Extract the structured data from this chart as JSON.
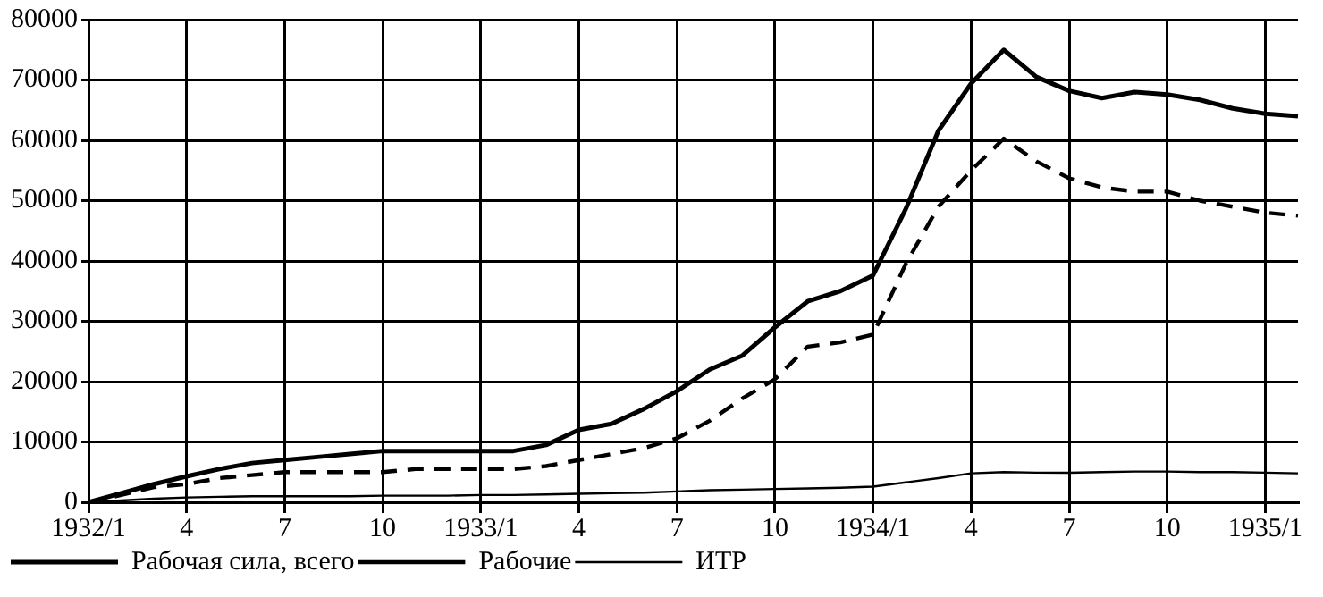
{
  "chart_data": {
    "type": "line",
    "categories": [
      "1932/1",
      null,
      null,
      "4",
      null,
      null,
      "7",
      null,
      null,
      "10",
      null,
      null,
      "1933/1",
      null,
      null,
      "4",
      null,
      null,
      "7",
      null,
      null,
      "10",
      null,
      null,
      "1934/1",
      null,
      null,
      "4",
      null,
      null,
      "7",
      null,
      null,
      "10",
      null,
      null,
      "1935/1",
      null
    ],
    "series": [
      {
        "name": "Рабочая сила, всего",
        "color": "#000000",
        "line_style": "solid",
        "values": [
          0,
          1500,
          3000,
          4300,
          5500,
          6500,
          7000,
          7500,
          8000,
          8500,
          8500,
          8500,
          8500,
          8500,
          9500,
          12000,
          13000,
          15500,
          18400,
          22000,
          24300,
          29000,
          33300,
          35000,
          37600,
          48600,
          61600,
          69400,
          75000,
          70500,
          68200,
          67000,
          68000,
          67600,
          66700,
          65300,
          64400,
          64000
        ]
      },
      {
        "name": "Рабочие",
        "color": "#000000",
        "line_style": "dashed",
        "values": [
          0,
          1200,
          2500,
          3000,
          4000,
          4500,
          5000,
          5000,
          5000,
          5000,
          5500,
          5500,
          5500,
          5500,
          6000,
          7000,
          8000,
          9000,
          10600,
          13500,
          17200,
          20400,
          25800,
          26500,
          27800,
          39500,
          49000,
          55000,
          60300,
          56500,
          53700,
          52200,
          51500,
          51500,
          50000,
          49000,
          48000,
          47500
        ]
      },
      {
        "name": "ИТР",
        "color": "#000000",
        "line_style": "solid",
        "values": [
          0,
          300,
          600,
          800,
          900,
          1000,
          1000,
          1000,
          1000,
          1100,
          1100,
          1100,
          1200,
          1200,
          1300,
          1400,
          1500,
          1600,
          1800,
          2000,
          2100,
          2200,
          2300,
          2400,
          2600,
          3300,
          4000,
          4800,
          5000,
          4900,
          4900,
          5000,
          5100,
          5100,
          5000,
          5000,
          4900,
          4800
        ]
      }
    ],
    "ylim": [
      0,
      80000
    ],
    "yticks": [
      0,
      10000,
      20000,
      30000,
      40000,
      50000,
      60000,
      70000,
      80000
    ],
    "grid": true,
    "legend": "bottom left",
    "marker": "none"
  }
}
